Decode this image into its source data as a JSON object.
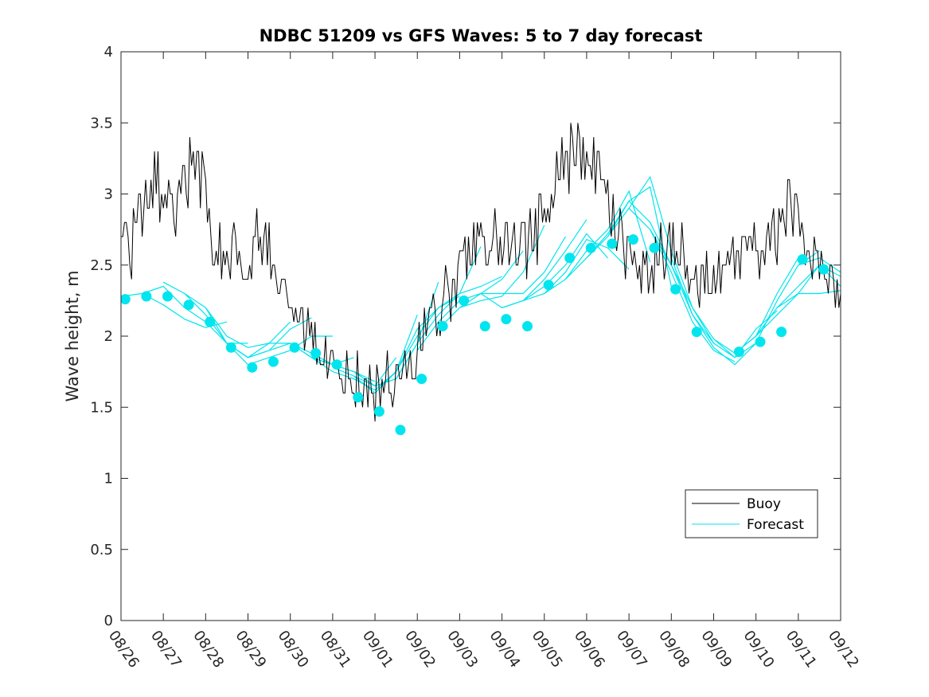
{
  "chart_data": {
    "type": "line",
    "title": "NDBC 51209 vs GFS Waves: 5 to 7 day forecast",
    "ylabel": "Wave height, m",
    "xlabel": "",
    "ylim": [
      0,
      4
    ],
    "xlim": [
      0,
      17
    ],
    "yticks": [
      0,
      0.5,
      1,
      1.5,
      2,
      2.5,
      3,
      3.5,
      4
    ],
    "ytick_labels": [
      "0",
      "0.5",
      "1",
      "1.5",
      "2",
      "2.5",
      "3",
      "3.5",
      "4"
    ],
    "xtick_labels": [
      "08/26",
      "08/27",
      "08/28",
      "08/29",
      "08/30",
      "08/31",
      "09/01",
      "09/02",
      "09/03",
      "09/04",
      "09/05",
      "09/06",
      "09/07",
      "09/08",
      "09/09",
      "09/10",
      "09/11",
      "09/12"
    ],
    "grid": false,
    "legend": {
      "placement": "lower-right",
      "entries": [
        "Buoy",
        "Forecast"
      ]
    },
    "colors": {
      "buoy": "#000000",
      "forecast": "#00e5ee",
      "axis": "#262626"
    },
    "series": [
      {
        "name": "Buoy",
        "x": [
          0,
          0.25,
          0.5,
          0.75,
          1,
          1.25,
          1.5,
          1.75,
          2,
          2.25,
          2.5,
          2.75,
          3,
          3.25,
          3.5,
          3.75,
          4,
          4.25,
          4.5,
          4.75,
          5,
          5.25,
          5.5,
          5.75,
          6,
          6.25,
          6.5,
          6.75,
          7,
          7.25,
          7.5,
          7.75,
          8,
          8.25,
          8.5,
          8.75,
          9,
          9.25,
          9.5,
          9.75,
          10,
          10.25,
          10.5,
          10.75,
          11,
          11.25,
          11.5,
          11.75,
          12,
          12.25,
          12.5,
          12.75,
          13,
          13.25,
          13.5,
          13.75,
          14,
          14.25,
          14.5,
          14.75,
          15,
          15.25,
          15.5,
          15.75,
          16,
          16.25,
          16.5,
          16.75,
          17
        ],
        "values": [
          2.7,
          2.65,
          2.9,
          3.1,
          3.0,
          2.9,
          3.1,
          3.2,
          3.0,
          2.6,
          2.5,
          2.6,
          2.5,
          2.7,
          2.55,
          2.3,
          2.1,
          2.05,
          1.9,
          1.8,
          1.8,
          1.75,
          1.7,
          1.65,
          1.6,
          1.65,
          1.7,
          1.8,
          1.9,
          2.0,
          2.2,
          2.3,
          2.5,
          2.6,
          2.7,
          2.7,
          2.6,
          2.55,
          2.6,
          2.7,
          2.85,
          3.1,
          3.2,
          3.35,
          3.3,
          3.1,
          2.9,
          2.7,
          2.55,
          2.45,
          2.5,
          2.6,
          2.6,
          2.55,
          2.4,
          2.35,
          2.4,
          2.45,
          2.5,
          2.6,
          2.6,
          2.65,
          2.75,
          2.9,
          2.85,
          2.6,
          2.5,
          2.45,
          2.4
        ]
      },
      {
        "name": "Forecast",
        "segments": [
          {
            "x": [
              0,
              0.5,
              1,
              1.5,
              2,
              2.5
            ],
            "values": [
              2.28,
              2.3,
              2.22,
              2.12,
              2.06,
              2.1
            ]
          },
          {
            "x": [
              0.5,
              1,
              1.5,
              2,
              2.5,
              3
            ],
            "values": [
              2.3,
              2.35,
              2.2,
              2.1,
              1.95,
              1.95
            ]
          },
          {
            "x": [
              1,
              1.5,
              2,
              2.5,
              3,
              3.5
            ],
            "values": [
              2.38,
              2.3,
              2.15,
              1.95,
              1.85,
              1.9
            ]
          },
          {
            "x": [
              1.5,
              2,
              2.5,
              3,
              3.5,
              4
            ],
            "values": [
              2.3,
              2.2,
              2.0,
              1.92,
              1.95,
              2.1
            ]
          },
          {
            "x": [
              2,
              2.5,
              3,
              3.5,
              4,
              4.5
            ],
            "values": [
              2.2,
              1.95,
              1.85,
              1.9,
              2.05,
              2.13
            ]
          },
          {
            "x": [
              2.5,
              3,
              3.5,
              4,
              4.5,
              5
            ],
            "values": [
              1.95,
              1.8,
              1.85,
              1.9,
              2.0,
              2.0
            ]
          },
          {
            "x": [
              3,
              3.5,
              4,
              4.5,
              5,
              5.5
            ],
            "values": [
              1.85,
              1.95,
              1.95,
              1.85,
              1.8,
              1.85
            ]
          },
          {
            "x": [
              3.5,
              4,
              4.5,
              5,
              5.5,
              6
            ],
            "values": [
              1.9,
              1.95,
              1.88,
              1.8,
              1.75,
              1.68
            ]
          },
          {
            "x": [
              4,
              4.5,
              5,
              5.5,
              6,
              6.5
            ],
            "values": [
              1.95,
              1.85,
              1.8,
              1.75,
              1.65,
              1.85
            ]
          },
          {
            "x": [
              4.5,
              5,
              5.5,
              6,
              6.5,
              7
            ],
            "values": [
              1.85,
              1.75,
              1.7,
              1.62,
              1.75,
              2.15
            ]
          },
          {
            "x": [
              5,
              5.5,
              6,
              6.5,
              7,
              7.5
            ],
            "values": [
              1.78,
              1.72,
              1.65,
              1.7,
              1.95,
              2.38
            ]
          },
          {
            "x": [
              5.5,
              6,
              6.5,
              7,
              7.5,
              8
            ],
            "values": [
              1.72,
              1.6,
              1.75,
              2.05,
              2.2,
              2.28
            ]
          },
          {
            "x": [
              6,
              6.5,
              7,
              7.5,
              8,
              8.5
            ],
            "values": [
              1.62,
              1.75,
              2.0,
              2.2,
              2.3,
              2.63
            ]
          },
          {
            "x": [
              6.5,
              7,
              7.5,
              8,
              8.5,
              9
            ],
            "values": [
              1.7,
              1.95,
              2.15,
              2.3,
              2.35,
              2.42
            ]
          },
          {
            "x": [
              7,
              7.5,
              8,
              8.5,
              9,
              9.5
            ],
            "values": [
              1.9,
              2.1,
              2.25,
              2.3,
              2.4,
              2.6
            ]
          },
          {
            "x": [
              7.5,
              8,
              8.5,
              9,
              9.5,
              10
            ],
            "values": [
              2.05,
              2.2,
              2.25,
              2.28,
              2.45,
              2.78
            ]
          },
          {
            "x": [
              8,
              8.5,
              9,
              9.5,
              10,
              10.5
            ],
            "values": [
              2.2,
              2.3,
              2.3,
              2.3,
              2.45,
              2.7
            ]
          },
          {
            "x": [
              8.5,
              9,
              9.5,
              10,
              10.5,
              11
            ],
            "values": [
              2.3,
              2.2,
              2.25,
              2.4,
              2.6,
              2.82
            ]
          },
          {
            "x": [
              9,
              9.5,
              10,
              10.5,
              11,
              11.5
            ],
            "values": [
              2.2,
              2.25,
              2.35,
              2.5,
              2.72,
              2.55
            ]
          },
          {
            "x": [
              9.5,
              10,
              10.5,
              11,
              11.5,
              12
            ],
            "values": [
              2.25,
              2.3,
              2.45,
              2.68,
              2.62,
              2.47
            ]
          },
          {
            "x": [
              10,
              10.5,
              11,
              11.5,
              12,
              12.5
            ],
            "values": [
              2.3,
              2.4,
              2.6,
              2.75,
              3.02,
              2.52
            ]
          },
          {
            "x": [
              10.5,
              11,
              11.5,
              12,
              12.5,
              13
            ],
            "values": [
              2.4,
              2.55,
              2.72,
              2.95,
              3.05,
              2.35
            ]
          },
          {
            "x": [
              11,
              11.5,
              12,
              12.5,
              13,
              13.5
            ],
            "values": [
              2.55,
              2.7,
              2.9,
              3.12,
              2.6,
              2.2
            ]
          },
          {
            "x": [
              11.5,
              12,
              12.5,
              13,
              13.5,
              14
            ],
            "values": [
              2.7,
              2.95,
              2.8,
              2.5,
              2.2,
              1.95
            ]
          },
          {
            "x": [
              12,
              12.5,
              13,
              13.5,
              14,
              14.5
            ],
            "values": [
              2.9,
              2.75,
              2.45,
              2.1,
              1.9,
              1.82
            ]
          },
          {
            "x": [
              12.5,
              13,
              13.5,
              14,
              14.5,
              15
            ],
            "values": [
              2.75,
              2.5,
              2.15,
              1.92,
              1.8,
              1.95
            ]
          },
          {
            "x": [
              13,
              13.5,
              14,
              14.5,
              15,
              15.5
            ],
            "values": [
              2.55,
              2.15,
              1.95,
              1.85,
              2.05,
              2.18
            ]
          },
          {
            "x": [
              13.5,
              14,
              14.5,
              15,
              15.5,
              16
            ],
            "values": [
              2.2,
              1.98,
              1.88,
              2.0,
              2.3,
              2.55
            ]
          },
          {
            "x": [
              14,
              14.5,
              15,
              15.5,
              16,
              16.5
            ],
            "values": [
              1.98,
              1.85,
              1.95,
              2.25,
              2.5,
              2.6
            ]
          },
          {
            "x": [
              14.5,
              15,
              15.5,
              16,
              16.5,
              17
            ],
            "values": [
              1.88,
              2.0,
              2.15,
              2.3,
              2.5,
              2.42
            ]
          },
          {
            "x": [
              15,
              15.5,
              16,
              16.5,
              17
            ],
            "values": [
              2.0,
              2.2,
              2.35,
              2.5,
              2.35
            ]
          },
          {
            "x": [
              15.5,
              16,
              16.5,
              17
            ],
            "values": [
              2.2,
              2.3,
              2.3,
              2.32
            ]
          },
          {
            "x": [
              16,
              16.5,
              17
            ],
            "values": [
              2.5,
              2.55,
              2.45
            ]
          }
        ],
        "markers": {
          "x": [
            0.1,
            0.6,
            1.1,
            1.6,
            2.1,
            2.6,
            3.1,
            3.6,
            4.1,
            4.6,
            5.1,
            5.6,
            6.1,
            6.6,
            7.1,
            7.6,
            8.1,
            8.6,
            9.1,
            9.6,
            10.1,
            10.6,
            11.1,
            11.6,
            12.1,
            12.6,
            13.1,
            13.6,
            14.6,
            15.1,
            15.6,
            16.1,
            16.6
          ],
          "values": [
            2.26,
            2.28,
            2.28,
            2.22,
            2.1,
            1.92,
            1.78,
            1.82,
            1.92,
            1.88,
            1.8,
            1.57,
            1.47,
            1.34,
            1.7,
            2.07,
            2.25,
            2.07,
            2.12,
            2.07,
            2.36,
            2.55,
            2.62,
            2.65,
            2.68,
            2.62,
            2.33,
            2.03,
            1.89,
            1.96,
            2.03,
            2.54,
            2.47
          ]
        }
      }
    ]
  }
}
